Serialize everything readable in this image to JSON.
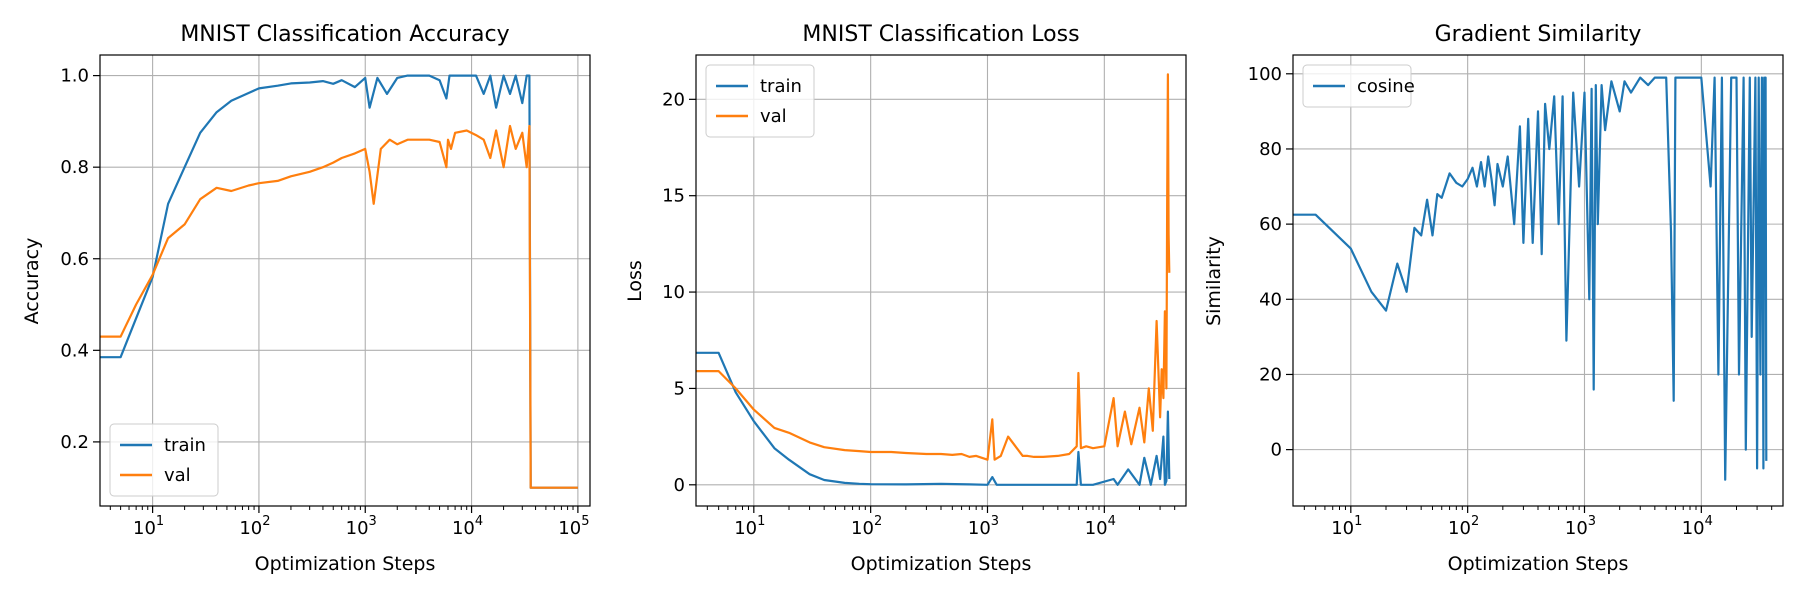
{
  "colors": {
    "train": "#1f77b4",
    "val": "#ff7f0e",
    "grid": "#b0b0b0"
  },
  "chart_data": [
    {
      "type": "line",
      "title": "MNIST Classification Accuracy",
      "xlabel": "Optimization Steps",
      "ylabel": "Accuracy",
      "xscale": "log",
      "xlim": [
        3.2,
        130000
      ],
      "ylim": [
        0.06,
        1.045
      ],
      "xticks": [
        {
          "v": 10,
          "b": "10",
          "e": "1"
        },
        {
          "v": 100,
          "b": "10",
          "e": "2"
        },
        {
          "v": 1000,
          "b": "10",
          "e": "3"
        },
        {
          "v": 10000,
          "b": "10",
          "e": "4"
        },
        {
          "v": 100000,
          "b": "10",
          "e": "5"
        }
      ],
      "yticks": [
        {
          "v": 0.2,
          "label": "0.2"
        },
        {
          "v": 0.4,
          "label": "0.4"
        },
        {
          "v": 0.6,
          "label": "0.6"
        },
        {
          "v": 0.8,
          "label": "0.8"
        },
        {
          "v": 1.0,
          "label": "1.0"
        }
      ],
      "grid": true,
      "legend": "lower left",
      "series": [
        {
          "name": "train",
          "color": "#1f77b4",
          "x": [
            3.2,
            5,
            7,
            10,
            14,
            20,
            28,
            40,
            55,
            80,
            100,
            150,
            200,
            300,
            400,
            500,
            600,
            800,
            1000,
            1100,
            1300,
            1600,
            2000,
            2500,
            3000,
            4000,
            5000,
            5800,
            6200,
            7000,
            9000,
            11000,
            13000,
            15000,
            17000,
            20000,
            23000,
            26000,
            30000,
            33000,
            35000,
            36000,
            38000,
            100000
          ],
          "y": [
            0.385,
            0.385,
            0.47,
            0.56,
            0.72,
            0.8,
            0.875,
            0.92,
            0.945,
            0.962,
            0.972,
            0.978,
            0.983,
            0.985,
            0.988,
            0.982,
            0.99,
            0.975,
            0.995,
            0.93,
            0.995,
            0.96,
            0.995,
            1.0,
            1.0,
            1.0,
            0.99,
            0.95,
            1.0,
            1.0,
            1.0,
            1.0,
            0.96,
            1.0,
            0.93,
            1.0,
            0.96,
            1.0,
            0.94,
            1.0,
            1.0,
            0.1,
            0.1,
            0.1
          ]
        },
        {
          "name": "val",
          "color": "#ff7f0e",
          "x": [
            3.2,
            5,
            7,
            10,
            14,
            20,
            28,
            40,
            55,
            80,
            100,
            150,
            200,
            300,
            400,
            500,
            600,
            800,
            1000,
            1100,
            1200,
            1400,
            1700,
            2000,
            2500,
            3000,
            4000,
            5000,
            5800,
            6000,
            6400,
            7000,
            9000,
            11000,
            13000,
            15000,
            17000,
            20000,
            23000,
            26000,
            30000,
            33000,
            35000,
            36000,
            38000,
            100000
          ],
          "y": [
            0.43,
            0.43,
            0.5,
            0.565,
            0.645,
            0.675,
            0.73,
            0.755,
            0.748,
            0.76,
            0.765,
            0.77,
            0.78,
            0.79,
            0.8,
            0.81,
            0.82,
            0.83,
            0.84,
            0.79,
            0.72,
            0.84,
            0.86,
            0.85,
            0.86,
            0.86,
            0.86,
            0.855,
            0.8,
            0.86,
            0.84,
            0.875,
            0.88,
            0.87,
            0.86,
            0.82,
            0.88,
            0.8,
            0.89,
            0.84,
            0.875,
            0.8,
            0.89,
            0.1,
            0.1,
            0.1
          ]
        }
      ]
    },
    {
      "type": "line",
      "title": "MNIST Classification Loss",
      "xlabel": "Optimization Steps",
      "ylabel": "Loss",
      "xscale": "log",
      "xlim": [
        3.2,
        50000
      ],
      "ylim": [
        -1.1,
        22.3
      ],
      "xticks": [
        {
          "v": 10,
          "b": "10",
          "e": "1"
        },
        {
          "v": 100,
          "b": "10",
          "e": "2"
        },
        {
          "v": 1000,
          "b": "10",
          "e": "3"
        },
        {
          "v": 10000,
          "b": "10",
          "e": "4"
        }
      ],
      "yticks": [
        {
          "v": 0,
          "label": "0"
        },
        {
          "v": 5,
          "label": "5"
        },
        {
          "v": 10,
          "label": "10"
        },
        {
          "v": 15,
          "label": "15"
        },
        {
          "v": 20,
          "label": "20"
        }
      ],
      "grid": true,
      "legend": "upper left",
      "series": [
        {
          "name": "train",
          "color": "#1f77b4",
          "x": [
            3.2,
            5,
            7,
            10,
            15,
            20,
            30,
            40,
            60,
            80,
            100,
            200,
            400,
            700,
            1000,
            1100,
            1200,
            2000,
            4000,
            5800,
            6000,
            6300,
            8000,
            12000,
            13000,
            16000,
            20000,
            22000,
            25000,
            28000,
            30000,
            32000,
            33000,
            34000,
            35000,
            36000
          ],
          "y": [
            6.85,
            6.85,
            4.8,
            3.3,
            1.9,
            1.3,
            0.55,
            0.25,
            0.1,
            0.05,
            0.03,
            0.02,
            0.05,
            0.02,
            0.0,
            0.4,
            0.0,
            0.0,
            0.0,
            0.0,
            1.7,
            0.0,
            0.0,
            0.3,
            0.0,
            0.8,
            0.0,
            1.4,
            0.0,
            1.5,
            0.3,
            2.5,
            0.0,
            0.2,
            3.8,
            0.3
          ]
        },
        {
          "name": "val",
          "color": "#ff7f0e",
          "x": [
            3.2,
            5,
            7,
            10,
            15,
            20,
            30,
            40,
            60,
            80,
            100,
            150,
            200,
            300,
            400,
            500,
            600,
            700,
            800,
            1000,
            1100,
            1150,
            1300,
            1500,
            2000,
            2200,
            2500,
            3000,
            4000,
            5000,
            5800,
            6000,
            6300,
            7000,
            8000,
            10000,
            12000,
            13000,
            15000,
            17000,
            20000,
            22000,
            24000,
            26000,
            28000,
            30000,
            31000,
            32000,
            33000,
            34000,
            34500,
            35000,
            35500,
            36000
          ],
          "y": [
            5.9,
            5.9,
            5.0,
            3.9,
            2.95,
            2.7,
            2.2,
            1.95,
            1.8,
            1.75,
            1.7,
            1.7,
            1.65,
            1.6,
            1.6,
            1.55,
            1.6,
            1.45,
            1.5,
            1.3,
            3.4,
            1.3,
            1.5,
            2.5,
            1.5,
            1.5,
            1.45,
            1.45,
            1.5,
            1.6,
            2.0,
            5.8,
            1.9,
            2.0,
            1.9,
            2.0,
            4.5,
            2.0,
            3.8,
            2.1,
            4.0,
            2.2,
            5.0,
            2.8,
            8.5,
            3.5,
            6.0,
            4.5,
            9.0,
            5.0,
            15.0,
            21.3,
            13.0,
            11.0
          ]
        }
      ]
    },
    {
      "type": "line",
      "title": "Gradient Similarity",
      "xlabel": "Optimization Steps",
      "ylabel": "Similarity",
      "xscale": "log",
      "xlim": [
        3.2,
        50000
      ],
      "ylim": [
        -15,
        105
      ],
      "xticks": [
        {
          "v": 10,
          "b": "10",
          "e": "1"
        },
        {
          "v": 100,
          "b": "10",
          "e": "2"
        },
        {
          "v": 1000,
          "b": "10",
          "e": "3"
        },
        {
          "v": 10000,
          "b": "10",
          "e": "4"
        }
      ],
      "yticks": [
        {
          "v": 0,
          "label": "0"
        },
        {
          "v": 20,
          "label": "20"
        },
        {
          "v": 40,
          "label": "40"
        },
        {
          "v": 60,
          "label": "60"
        },
        {
          "v": 80,
          "label": "80"
        },
        {
          "v": 100,
          "label": "100"
        }
      ],
      "grid": true,
      "legend": "upper left",
      "series": [
        {
          "name": "cosine",
          "color": "#1f77b4",
          "x": [
            3.2,
            5,
            10,
            15,
            20,
            25,
            30,
            35,
            40,
            45,
            50,
            55,
            60,
            70,
            80,
            90,
            100,
            110,
            120,
            130,
            140,
            150,
            160,
            170,
            180,
            200,
            220,
            250,
            280,
            300,
            330,
            360,
            400,
            430,
            460,
            500,
            550,
            600,
            650,
            700,
            800,
            900,
            1000,
            1100,
            1150,
            1200,
            1250,
            1300,
            1400,
            1500,
            1700,
            2000,
            2200,
            2500,
            3000,
            3500,
            4000,
            5000,
            5500,
            5800,
            6000,
            6200,
            7000,
            8000,
            10000,
            12000,
            13000,
            14000,
            15000,
            16000,
            18000,
            20000,
            21000,
            23000,
            24000,
            26000,
            27000,
            29000,
            30000,
            31000,
            32000,
            33000,
            33500,
            34000,
            34500,
            35000,
            35500,
            36000
          ],
          "y": [
            62.5,
            62.5,
            53.5,
            42,
            37,
            49.5,
            42,
            59,
            57,
            66.5,
            57,
            68,
            67,
            73.5,
            71,
            70,
            72,
            75,
            70,
            76.5,
            70,
            78,
            72,
            65,
            76,
            70,
            78,
            60,
            86,
            55,
            88,
            55,
            90,
            52,
            92,
            80,
            94,
            60,
            94,
            29,
            95,
            70,
            95,
            40,
            96,
            16,
            97,
            60,
            97,
            85,
            98,
            90,
            98,
            95,
            99,
            97,
            99,
            99,
            58,
            13,
            99,
            99,
            99,
            99,
            99,
            70,
            99,
            20,
            99,
            -8,
            99,
            99,
            20,
            99,
            0,
            99,
            30,
            99,
            -5,
            99,
            20,
            99,
            60,
            -5,
            99,
            98,
            99,
            -3
          ]
        }
      ]
    }
  ]
}
